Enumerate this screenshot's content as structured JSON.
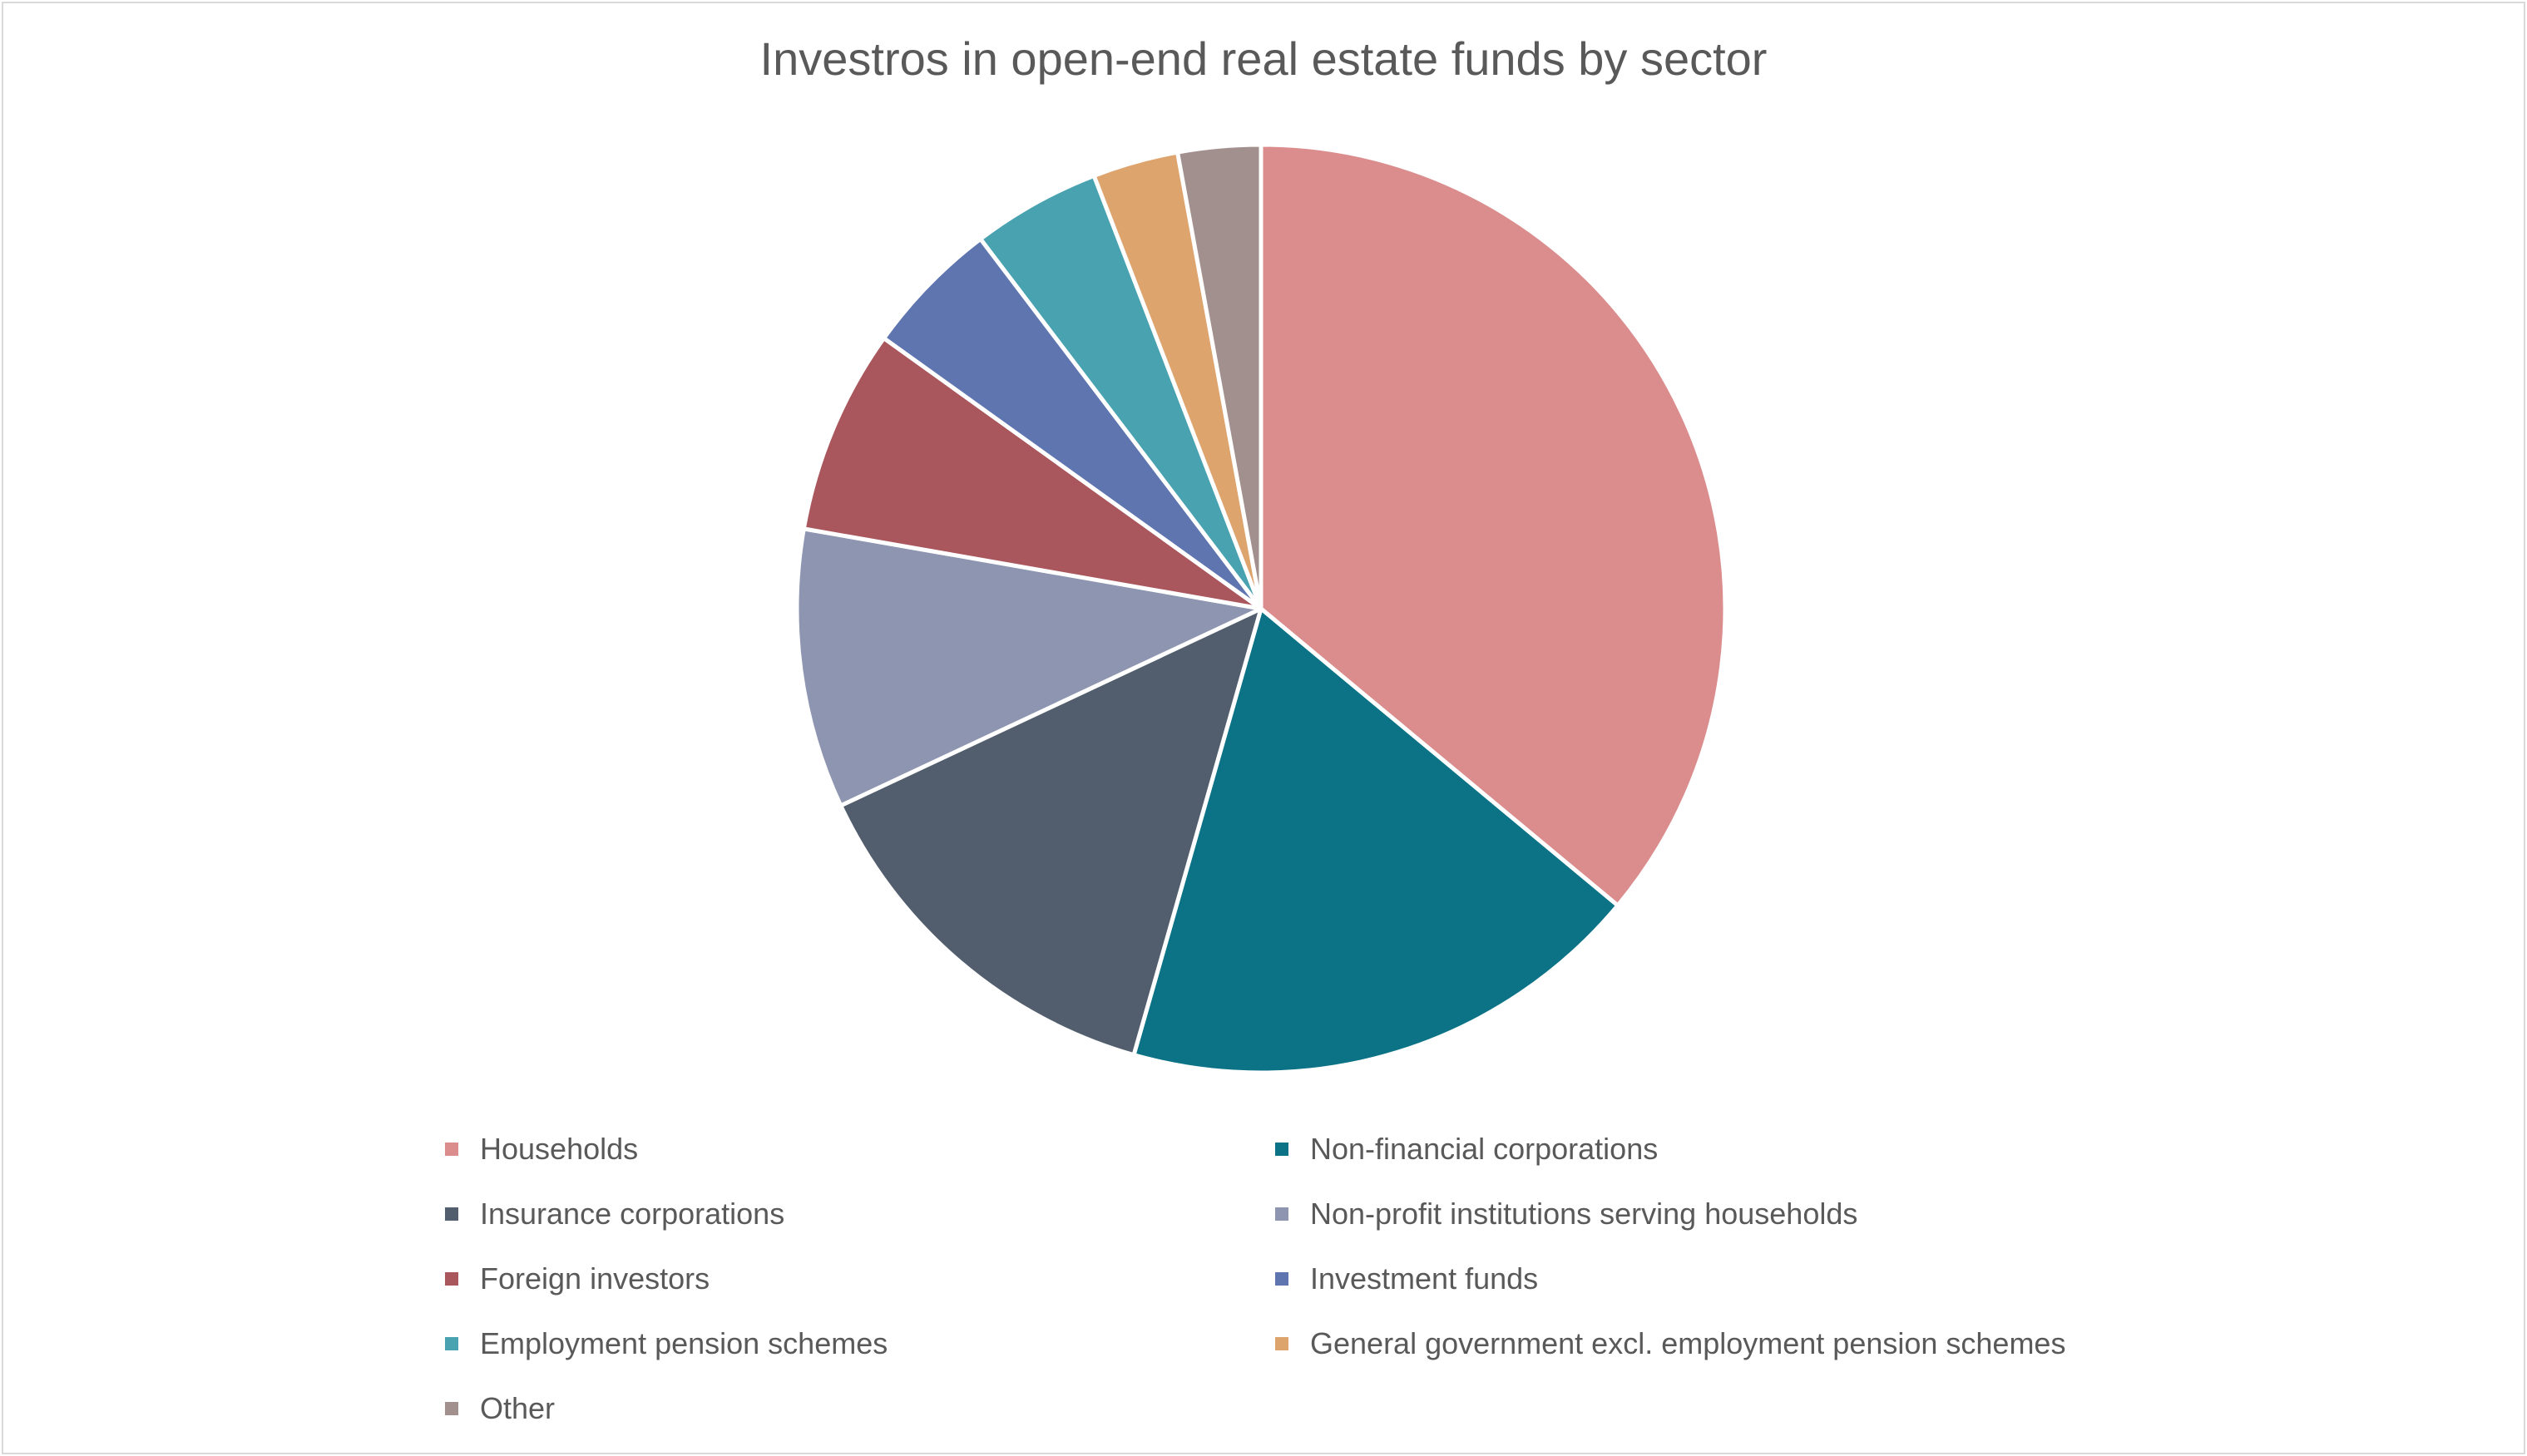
{
  "chart_data": {
    "type": "pie",
    "title": "Investros in open-end real estate funds by sector",
    "legend_position": "bottom",
    "slices": [
      {
        "name": "Households",
        "value": 36.3,
        "color": "#db8c8c"
      },
      {
        "name": "Non-financial corporations",
        "value": 18.5,
        "color": "#0c7387"
      },
      {
        "name": "Insurance corporations",
        "value": 13.7,
        "color": "#525e6e"
      },
      {
        "name": "Non-profit institutions serving households",
        "value": 9.8,
        "color": "#8e95b1"
      },
      {
        "name": "Foreign investors",
        "value": 7.2,
        "color": "#a9575d"
      },
      {
        "name": "Investment funds",
        "value": 4.8,
        "color": "#5f75b0"
      },
      {
        "name": "Employment pension schemes",
        "value": 4.5,
        "color": "#48a2b0"
      },
      {
        "name": "General government excl. employment pension schemes",
        "value": 3.0,
        "color": "#dea46e"
      },
      {
        "name": "Other",
        "value": 2.9,
        "color": "#a2908e"
      }
    ]
  }
}
